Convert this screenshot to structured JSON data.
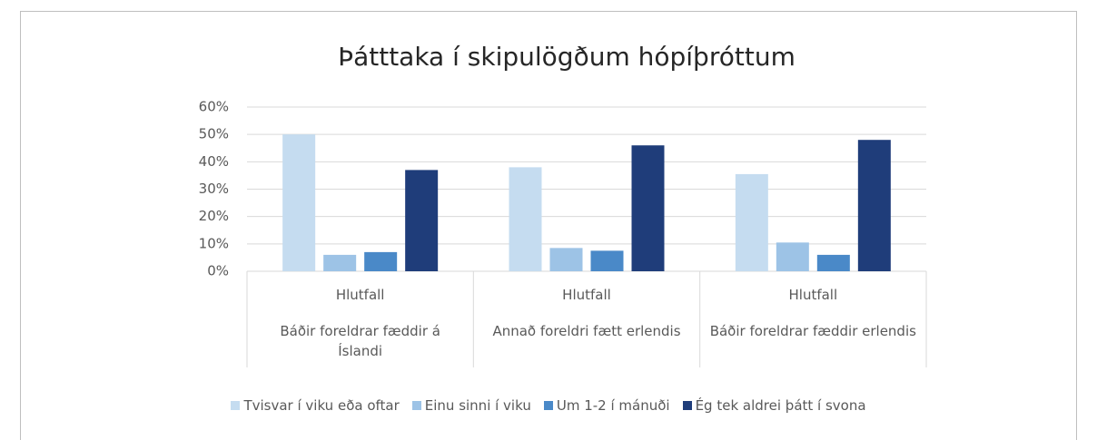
{
  "chart_data": {
    "type": "bar",
    "title": "Þátttaka í skipulögðum hópíþróttum",
    "subcategories": [
      "Hlutfall",
      "Hlutfall",
      "Hlutfall"
    ],
    "categories": [
      "Báðir foreldrar fæddir á Íslandi",
      "Annað foreldri fætt erlendis",
      "Báðir foreldrar fæddir erlendis"
    ],
    "series": [
      {
        "name": "Tvisvar í viku eða oftar",
        "color": "#c5dcf0",
        "values": [
          50,
          38,
          35.5
        ]
      },
      {
        "name": "Einu sinni í viku",
        "color": "#9dc3e6",
        "values": [
          6,
          8.5,
          10.5
        ]
      },
      {
        "name": "Um 1-2 í mánuði",
        "color": "#4a89c8",
        "values": [
          7,
          7.5,
          6
        ]
      },
      {
        "name": "Ég tek aldrei þátt í svona",
        "color": "#1f3d7a",
        "values": [
          37,
          46,
          48
        ]
      }
    ],
    "ylim": [
      0,
      60
    ],
    "yticks": [
      {
        "value": 0,
        "label": "0%"
      },
      {
        "value": 10,
        "label": "10%"
      },
      {
        "value": 20,
        "label": "20%"
      },
      {
        "value": 30,
        "label": "30%"
      },
      {
        "value": 40,
        "label": "40%"
      },
      {
        "value": 50,
        "label": "50%"
      },
      {
        "value": 60,
        "label": "60%"
      }
    ],
    "grid": true
  }
}
